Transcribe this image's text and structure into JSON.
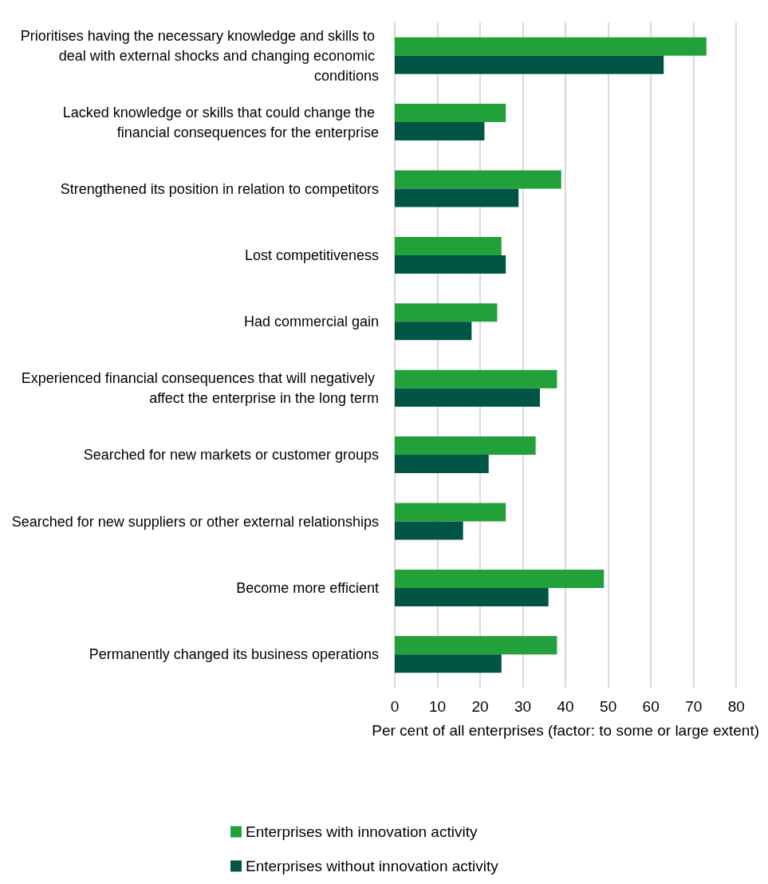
{
  "chart_data": {
    "type": "bar",
    "orientation": "horizontal",
    "categories": [
      "Prioritises having the necessary knowledge and skills to deal with external shocks and changing economic conditions",
      "Lacked knowledge or skills that could change the financial consequences for the enterprise",
      "Strengthened its position in relation to competitors",
      "Lost competitiveness",
      "Had commercial gain",
      "Experienced financial consequences that will negatively affect the enterprise in the long term",
      "Searched for new markets or customer groups",
      "Searched for new suppliers or other external relationships",
      "Become more efficient",
      "Permanently changed its business operations"
    ],
    "series": [
      {
        "name": "Enterprises with innovation activity",
        "color": "#22a03a",
        "values": [
          73,
          26,
          39,
          25,
          24,
          38,
          33,
          26,
          49,
          38
        ]
      },
      {
        "name": "Enterprises without innovation activity",
        "color": "#005545",
        "values": [
          63,
          21,
          29,
          26,
          18,
          34,
          22,
          16,
          36,
          25
        ]
      }
    ],
    "xlabel": "Per cent of all enterprises (factor: to some or large extent)",
    "xlim": [
      0,
      80
    ],
    "xticks": [
      0,
      10,
      20,
      30,
      40,
      50,
      60,
      70,
      80
    ],
    "grid": "x",
    "legend": "bottom"
  }
}
